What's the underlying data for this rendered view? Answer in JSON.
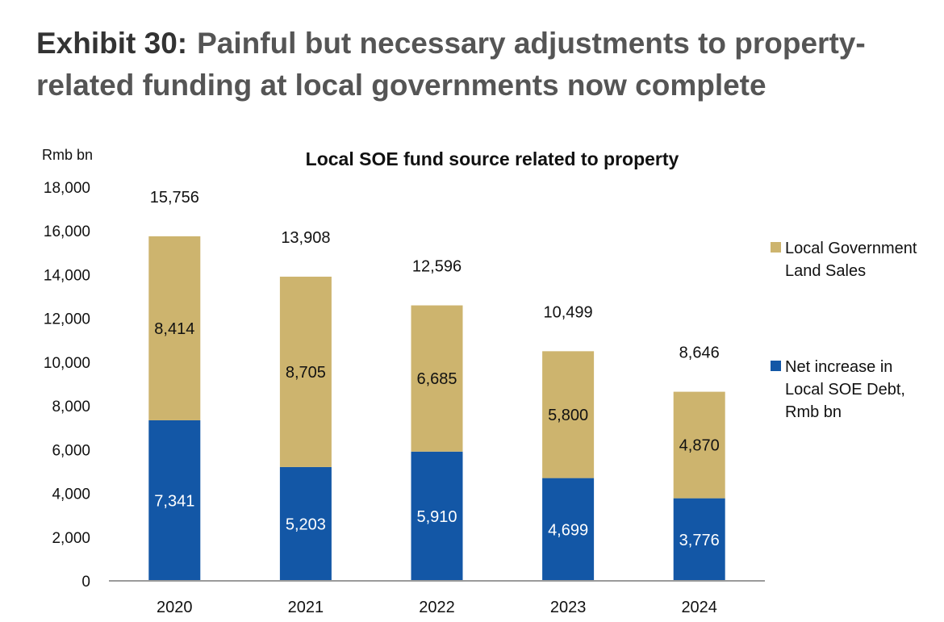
{
  "exhibit": {
    "label": "Exhibit 30:",
    "title": "Painful but necessary adjustments to property-related funding at local governments now complete"
  },
  "chart_data": {
    "type": "bar",
    "stacked": true,
    "title": "Local SOE fund source related to property",
    "ylabel": "Rmb bn",
    "ylim": [
      0,
      18000
    ],
    "yticks": [
      0,
      2000,
      4000,
      6000,
      8000,
      10000,
      12000,
      14000,
      16000,
      18000
    ],
    "ytick_labels": [
      "0",
      "2,000",
      "4,000",
      "6,000",
      "8,000",
      "10,000",
      "12,000",
      "14,000",
      "16,000",
      "18,000"
    ],
    "categories": [
      "2020",
      "2021",
      "2022",
      "2023",
      "2024"
    ],
    "series": [
      {
        "name": "Net increase in Local SOE Debt, Rmb bn",
        "legend_lines": [
          "Net increase in",
          "Local SOE Debt,",
          "Rmb bn"
        ],
        "color": "#1357A6",
        "values": [
          7341,
          5203,
          5910,
          4699,
          3776
        ],
        "labels": [
          "7,341",
          "5,203",
          "5,910",
          "4,699",
          "3,776"
        ]
      },
      {
        "name": "Local Government Land Sales",
        "legend_lines": [
          "Local Government",
          "Land Sales"
        ],
        "color": "#CDB46E",
        "values": [
          8414,
          8705,
          6685,
          5800,
          4870
        ],
        "labels": [
          "8,414",
          "8,705",
          "6,685",
          "5,800",
          "4,870"
        ]
      }
    ],
    "totals": [
      15756,
      13908,
      12596,
      10499,
      8646
    ],
    "total_labels": [
      "15,756",
      "13,908",
      "12,596",
      "10,499",
      "8,646"
    ],
    "legend_position": "right",
    "grid": false
  }
}
